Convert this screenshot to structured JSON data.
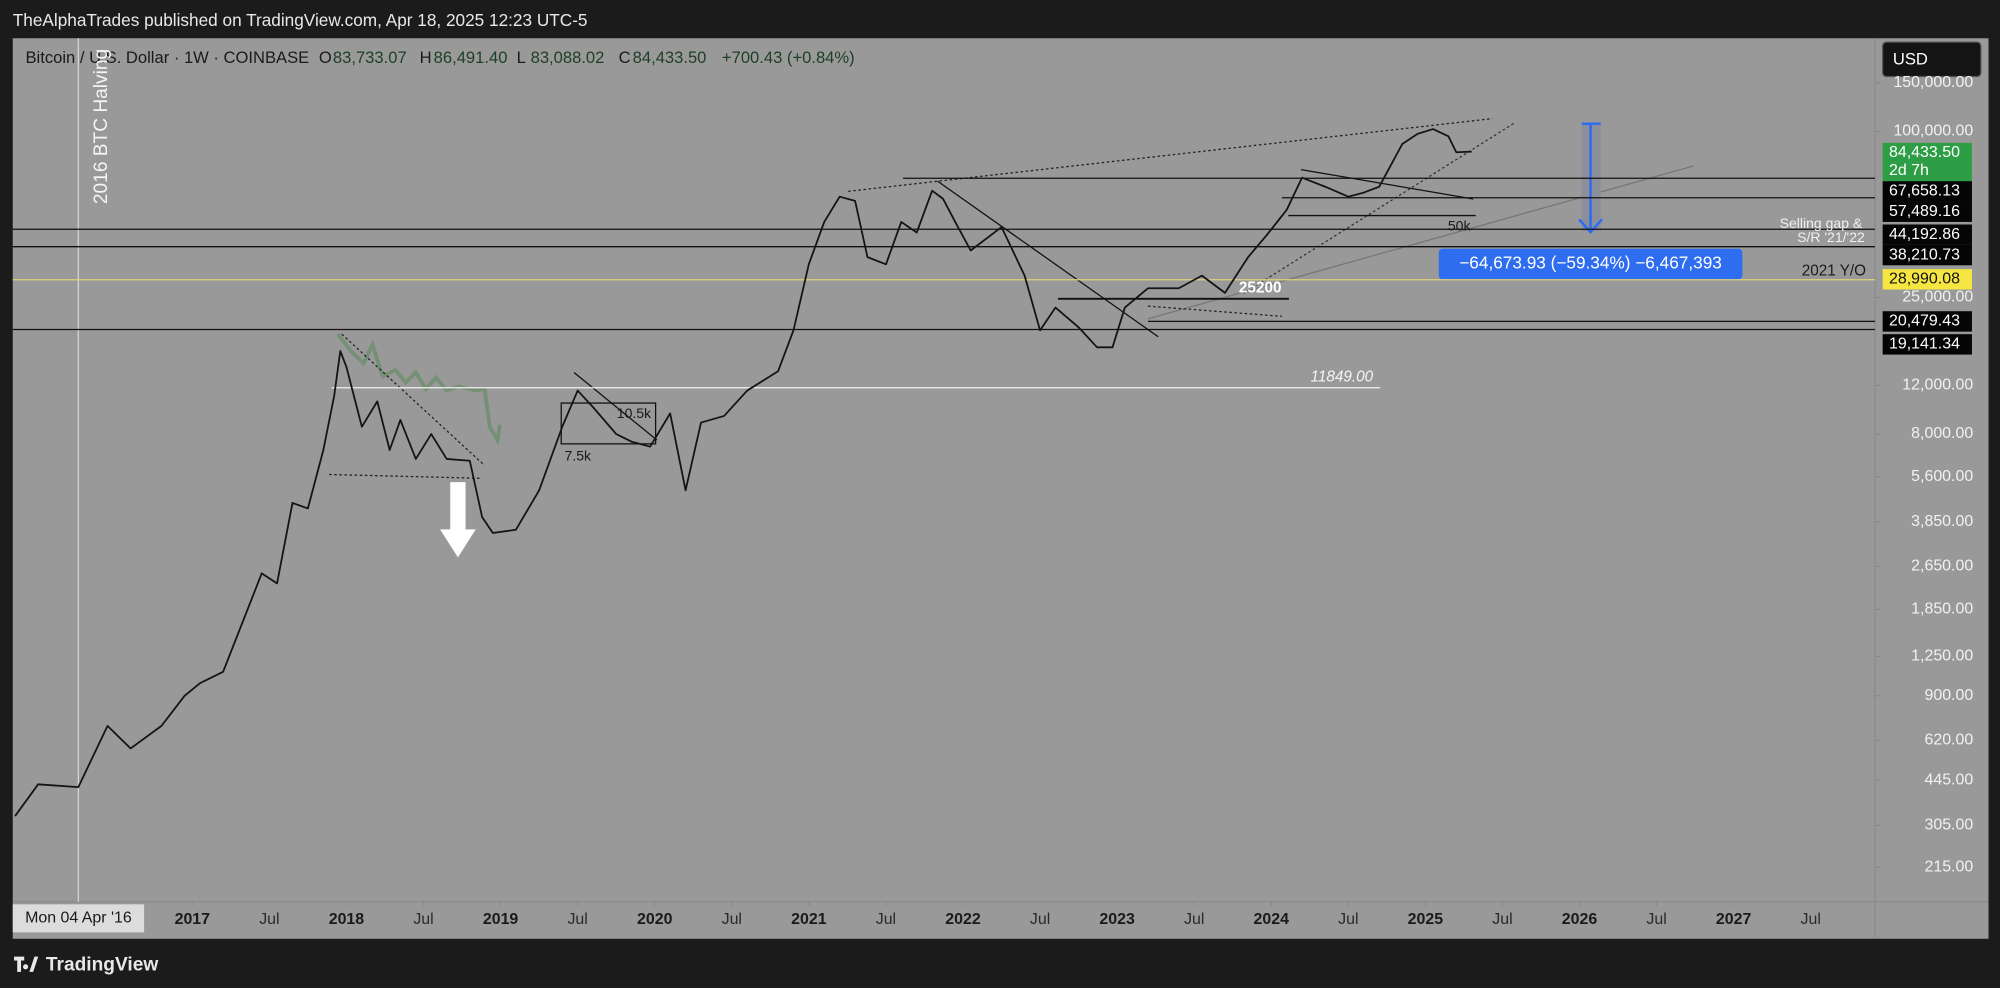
{
  "header": {
    "published": "TheAlphaTrades published on TradingView.com, Apr 18, 2025 12:23 UTC-5",
    "currency": "USD",
    "brand": "TradingView"
  },
  "chart_data": {
    "type": "line",
    "title": "Bitcoin / U.S. Dollar · 1W · COINBASE",
    "ohlc": [
      {
        "key": "O",
        "label": "83,733.07"
      },
      {
        "key": "H",
        "label": "86,491.40"
      },
      {
        "key": "L",
        "label": "83,088.02"
      },
      {
        "key": "C",
        "label": "84,433.50"
      }
    ],
    "change": "+700.43 (+0.84%)",
    "log_scale": true,
    "grid": false,
    "color": "#141414",
    "x": [
      2015.85,
      2016.0,
      2016.26,
      2016.45,
      2016.6,
      2016.8,
      2016.95,
      2017.05,
      2017.2,
      2017.35,
      2017.45,
      2017.55,
      2017.65,
      2017.75,
      2017.85,
      2017.92,
      2017.96,
      2018.0,
      2018.1,
      2018.2,
      2018.28,
      2018.35,
      2018.45,
      2018.55,
      2018.65,
      2018.8,
      2018.88,
      2018.95,
      2019.1,
      2019.25,
      2019.4,
      2019.5,
      2019.6,
      2019.75,
      2019.85,
      2019.97,
      2020.1,
      2020.2,
      2020.3,
      2020.45,
      2020.6,
      2020.8,
      2020.9,
      2021.0,
      2021.1,
      2021.2,
      2021.3,
      2021.38,
      2021.5,
      2021.6,
      2021.7,
      2021.8,
      2021.87,
      2021.95,
      2022.05,
      2022.25,
      2022.4,
      2022.5,
      2022.6,
      2022.75,
      2022.87,
      2022.97,
      2023.05,
      2023.2,
      2023.4,
      2023.55,
      2023.7,
      2023.85,
      2023.97,
      2024.1,
      2024.2,
      2024.35,
      2024.5,
      2024.6,
      2024.7,
      2024.85,
      2024.95,
      2025.05,
      2025.15,
      2025.2,
      2025.3
    ],
    "values": [
      330,
      430,
      420,
      700,
      580,
      700,
      900,
      1000,
      1100,
      1800,
      2500,
      2300,
      4500,
      4300,
      7000,
      11000,
      16000,
      14000,
      8500,
      10500,
      7000,
      9000,
      6500,
      8000,
      6500,
      6400,
      4000,
      3500,
      3600,
      5000,
      8500,
      11500,
      10000,
      8000,
      7500,
      7200,
      9500,
      5000,
      8800,
      9300,
      11500,
      13500,
      19000,
      33000,
      47000,
      58000,
      56000,
      35000,
      33000,
      47000,
      43000,
      61000,
      57000,
      47000,
      37000,
      45000,
      30000,
      19000,
      23000,
      19500,
      16500,
      16500,
      23000,
      27000,
      27000,
      30000,
      26000,
      35000,
      42000,
      52000,
      68000,
      63000,
      58000,
      60000,
      63000,
      90000,
      98000,
      102000,
      96000,
      84000,
      84433.5
    ],
    "xlim": [
      2015.835,
      2027.917
    ],
    "ylim": [
      161.3,
      217600
    ],
    "xticks": [
      {
        "value": 2017,
        "label": "2017"
      },
      {
        "value": 2017.5,
        "label": "Jul"
      },
      {
        "value": 2018,
        "label": "2018"
      },
      {
        "value": 2018.5,
        "label": "Jul"
      },
      {
        "value": 2019,
        "label": "2019"
      },
      {
        "value": 2019.5,
        "label": "Jul"
      },
      {
        "value": 2020,
        "label": "2020"
      },
      {
        "value": 2020.5,
        "label": "Jul"
      },
      {
        "value": 2021,
        "label": "2021"
      },
      {
        "value": 2021.5,
        "label": "Jul"
      },
      {
        "value": 2022,
        "label": "2022"
      },
      {
        "value": 2022.5,
        "label": "Jul"
      },
      {
        "value": 2023,
        "label": "2023"
      },
      {
        "value": 2023.5,
        "label": "Jul"
      },
      {
        "value": 2024,
        "label": "2024"
      },
      {
        "value": 2024.5,
        "label": "Jul"
      },
      {
        "value": 2025,
        "label": "2025"
      },
      {
        "value": 2025.5,
        "label": "Jul"
      },
      {
        "value": 2026,
        "label": "2026"
      },
      {
        "value": 2026.5,
        "label": "Jul"
      },
      {
        "value": 2027,
        "label": "2027"
      },
      {
        "value": 2027.5,
        "label": "Jul"
      }
    ],
    "yticks": [
      {
        "value": 150000,
        "label": "150,000.00"
      },
      {
        "value": 100000,
        "label": "100,000.00"
      },
      {
        "value": 25000,
        "label": "25,000.00"
      },
      {
        "value": 12000,
        "label": "12,000.00"
      },
      {
        "value": 8000,
        "label": "8,000.00"
      },
      {
        "value": 5600,
        "label": "5,600.00"
      },
      {
        "value": 3850,
        "label": "3,850.00"
      },
      {
        "value": 2650,
        "label": "2,650.00"
      },
      {
        "value": 1850,
        "label": "1,850.00"
      },
      {
        "value": 1250,
        "label": "1,250.00"
      },
      {
        "value": 900,
        "label": "900.00"
      },
      {
        "value": 620,
        "label": "620.00"
      },
      {
        "value": 445,
        "label": "445.00"
      },
      {
        "value": 305,
        "label": "305.00"
      },
      {
        "value": 215,
        "label": "215.00"
      }
    ],
    "cursor": {
      "x": 2016.26,
      "label": "Mon 04 Apr '16"
    },
    "last": {
      "value": 84433.5,
      "label": "84,433.50",
      "countdown": "2d 7h"
    },
    "price_lines": [
      {
        "value": 67658.13,
        "label": "67,658.13"
      },
      {
        "value": 57489.16,
        "label": "57,489.16"
      },
      {
        "value": 44192.86,
        "label": "44,192.86"
      },
      {
        "value": 38210.73,
        "label": "38,210.73"
      },
      {
        "value": 28990.08,
        "label": "28,990.08"
      },
      {
        "value": 20479.43,
        "label": "20,479.43"
      },
      {
        "value": 19141.34,
        "label": "19,141.34"
      }
    ],
    "annotations": {
      "halving": "2016 BTC Halving",
      "selling_gap": "Selling gap &",
      "sr": "S/R '21/'22",
      "yo": "2021 Y/O",
      "level": "11849.00",
      "k50": "50k",
      "k7_5": "7.5k",
      "k10_5": "10.5k",
      "k25200": "25200",
      "measure": "−64,673.93 (−59.34%) −6,467,393"
    }
  }
}
